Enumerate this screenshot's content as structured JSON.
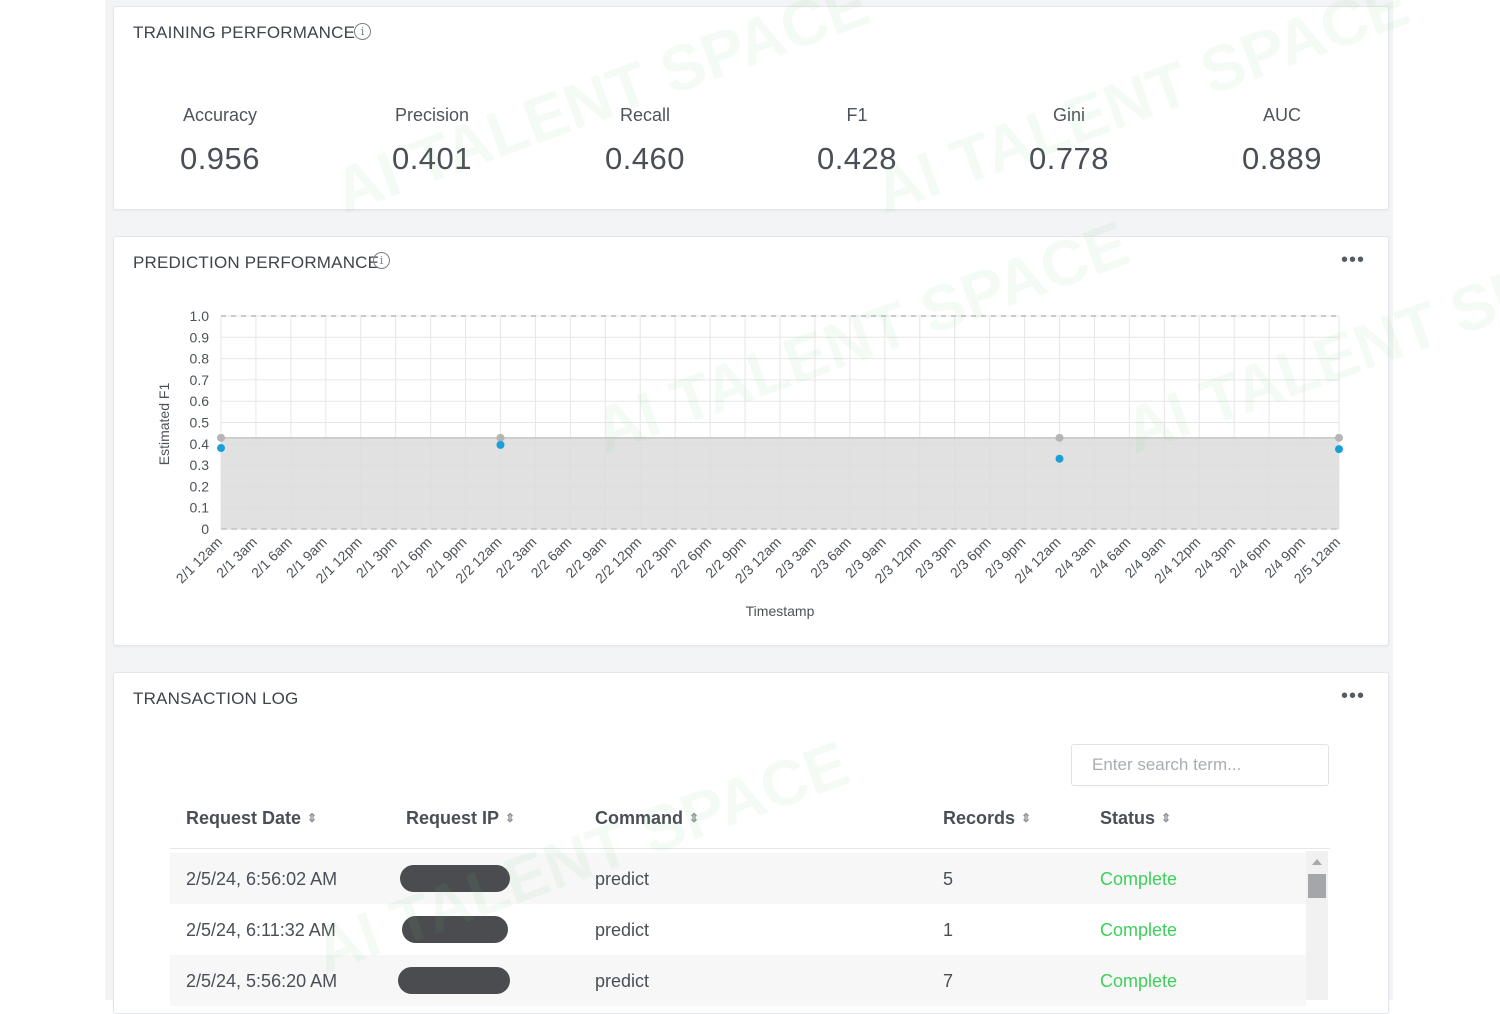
{
  "training": {
    "title": "TRAINING PERFORMANCE",
    "metrics": [
      {
        "label": "Accuracy",
        "value": "0.956"
      },
      {
        "label": "Precision",
        "value": "0.401"
      },
      {
        "label": "Recall",
        "value": "0.460"
      },
      {
        "label": "F1",
        "value": "0.428"
      },
      {
        "label": "Gini",
        "value": "0.778"
      },
      {
        "label": "AUC",
        "value": "0.889"
      }
    ]
  },
  "prediction": {
    "title": "PREDICTION PERFORMANCE"
  },
  "chart_data": {
    "type": "scatter",
    "xlabel": "Timestamp",
    "ylabel": "Estimated F1",
    "ylim": [
      0,
      1.0
    ],
    "y_ticks": [
      "0",
      "0.1",
      "0.2",
      "0.3",
      "0.4",
      "0.5",
      "0.6",
      "0.7",
      "0.8",
      "0.9",
      "1.0"
    ],
    "categories": [
      "2/1 12am",
      "2/1 3am",
      "2/1 6am",
      "2/1 9am",
      "2/1 12pm",
      "2/1 3pm",
      "2/1 6pm",
      "2/1 9pm",
      "2/2 12am",
      "2/2 3am",
      "2/2 6am",
      "2/2 9am",
      "2/2 12pm",
      "2/2 3pm",
      "2/2 6pm",
      "2/2 9pm",
      "2/3 12am",
      "2/3 3am",
      "2/3 6am",
      "2/3 9am",
      "2/3 12pm",
      "2/3 3pm",
      "2/3 6pm",
      "2/3 9pm",
      "2/4 12am",
      "2/4 3am",
      "2/4 6am",
      "2/4 9am",
      "2/4 12pm",
      "2/4 3pm",
      "2/4 6pm",
      "2/4 9pm",
      "2/5 12am"
    ],
    "band_upper": 0.428,
    "band_lower": 0,
    "series": [
      {
        "x": [
          "2/1 12am",
          "2/2 12am",
          "2/4 12am",
          "2/5 12am"
        ],
        "values": [
          0.38,
          0.395,
          0.33,
          0.375
        ],
        "color": "#1a9fd8"
      },
      {
        "x": [
          "2/1 12am",
          "2/2 12am",
          "2/4 12am",
          "2/5 12am"
        ],
        "values": [
          0.428,
          0.428,
          0.428,
          0.428
        ],
        "color": "#b5b5b5"
      }
    ],
    "upper_limit": 1.0,
    "grid": true,
    "band_color": "#dcdcdc"
  },
  "log": {
    "title": "TRANSACTION LOG",
    "search_placeholder": "Enter search term...",
    "columns": [
      "Request Date",
      "Request IP",
      "Command",
      "Records",
      "Status"
    ],
    "rows": [
      {
        "date": "2/5/24, 6:56:02 AM",
        "command": "predict",
        "records": "5",
        "status": "Complete"
      },
      {
        "date": "2/5/24, 6:11:32 AM",
        "command": "predict",
        "records": "1",
        "status": "Complete"
      },
      {
        "date": "2/5/24, 5:56:20 AM",
        "command": "predict",
        "records": "7",
        "status": "Complete"
      }
    ]
  },
  "watermark": "AI TALENT SPACE",
  "colors": {
    "accent_green": "#3fcf5a",
    "point_blue": "#1a9fd8"
  }
}
